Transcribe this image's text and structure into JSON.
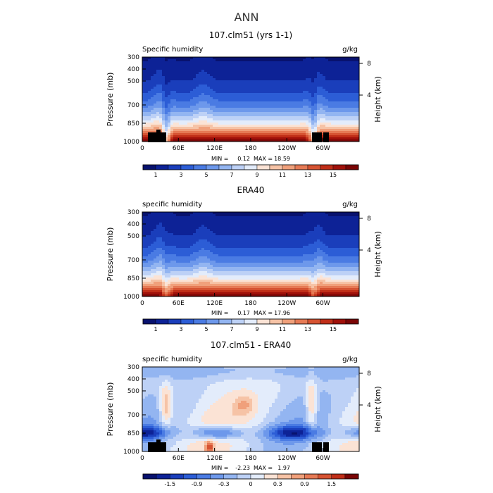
{
  "figure": {
    "title": "ANN"
  },
  "chart_data": [
    {
      "type": "heatmap",
      "title": "107.clm51 (yrs 1-1)",
      "subtitle_left": "Specific humidity",
      "subtitle_right": "g/kg",
      "ylabel": "Pressure (mb)",
      "ylabel_right": "Height (km)",
      "yticks": [
        "300",
        "400",
        "500",
        "700",
        "850",
        "1000"
      ],
      "yticks_right": [
        "8",
        "4"
      ],
      "xticks": [
        "0",
        "60E",
        "120E",
        "180",
        "120W",
        "60W"
      ],
      "stats": {
        "min_label": "MIN =",
        "min": "0.12",
        "max_label": "MAX =",
        "max": "18.59"
      },
      "colorbar_labels": [
        "1",
        "3",
        "5",
        "7",
        "9",
        "11",
        "13",
        "15"
      ]
    },
    {
      "type": "heatmap",
      "title": "ERA40",
      "subtitle_left": "specific humidity",
      "subtitle_right": "g/kg",
      "ylabel": "Pressure (mb)",
      "ylabel_right": "Height (km)",
      "yticks": [
        "300",
        "400",
        "500",
        "700",
        "850",
        "1000"
      ],
      "yticks_right": [
        "8",
        "4"
      ],
      "xticks": [
        "0",
        "60E",
        "120E",
        "180",
        "120W",
        "60W"
      ],
      "stats": {
        "min_label": "MIN =",
        "min": "0.17",
        "max_label": "MAX =",
        "max": "17.96"
      },
      "colorbar_labels": [
        "1",
        "3",
        "5",
        "7",
        "9",
        "11",
        "13",
        "15"
      ]
    },
    {
      "type": "heatmap",
      "title": "107.clm51 - ERA40",
      "subtitle_left": "specific humidity",
      "subtitle_right": "g/kg",
      "ylabel": "Pressure (mb)",
      "ylabel_right": "Height (km)",
      "yticks": [
        "300",
        "400",
        "500",
        "700",
        "850",
        "1000"
      ],
      "yticks_right": [
        "8",
        "4"
      ],
      "xticks": [
        "0",
        "60E",
        "120E",
        "180",
        "120W",
        "60W"
      ],
      "stats": {
        "min_label": "MIN =",
        "min": "-2.23",
        "max_label": "MAX =",
        "max": "1.97"
      },
      "colorbar_labels": [
        "-1.5",
        "-0.9",
        "-0.3",
        "0",
        "0.3",
        "0.9",
        "1.5"
      ]
    }
  ],
  "colors": {
    "abs_scale": [
      "#08126e",
      "#0d2296",
      "#1a3ebb",
      "#2c5dd6",
      "#4a7be3",
      "#6d98eb",
      "#93b5f1",
      "#bdd1f6",
      "#e3ecfb",
      "#fbe3d5",
      "#f6c3a6",
      "#f0a07b",
      "#e67a55",
      "#d65332",
      "#c02e18",
      "#a0110a",
      "#7a0505"
    ],
    "diff_scale": [
      "#08126e",
      "#0d2296",
      "#1a3ebb",
      "#2c5dd6",
      "#4a7be3",
      "#6d98eb",
      "#93b5f1",
      "#bdd1f6",
      "#e3ecfb",
      "#fbe3d5",
      "#f6c3a6",
      "#f0a07b",
      "#e67a55",
      "#d65332",
      "#c02e18",
      "#7a0505"
    ]
  }
}
